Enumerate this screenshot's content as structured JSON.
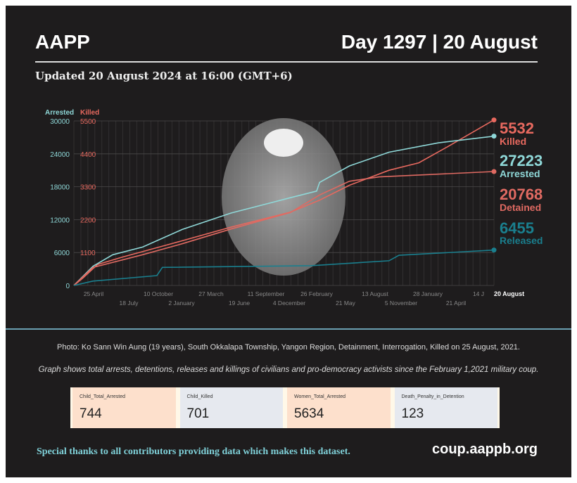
{
  "header": {
    "org": "AAPP",
    "day": "Day 1297 | 20 August",
    "updated": "Updated 20 August 2024 at 16:00 (GMT+6)"
  },
  "colors": {
    "arrested": "#8fd8d8",
    "killed": "#e8695f",
    "detained": "#e06a62",
    "released": "#1a7f8e",
    "background": "#1e1c1d"
  },
  "chart_data": {
    "type": "line",
    "left_axis": {
      "label": "Arrested",
      "ticks": [
        0,
        6000,
        12000,
        18000,
        24000,
        30000
      ],
      "ylim": [
        0,
        30000
      ]
    },
    "right_axis": {
      "label": "Killed",
      "ticks": [
        1100,
        2200,
        3300,
        4400,
        5500
      ],
      "ylim": [
        0,
        5500
      ]
    },
    "x_ticks": [
      "25 April",
      "18 July",
      "10 October",
      "2 January",
      "27 March",
      "19 June",
      "11 September",
      "4 December",
      "26 February",
      "21 May",
      "13 August",
      "5 November",
      "28 January",
      "21 April",
      "14 J"
    ],
    "x_end_label": "20 August",
    "xlim": [
      "2021-02-01",
      "2024-08-20"
    ],
    "grid": true,
    "series": [
      {
        "name": "Killed",
        "axis": "right",
        "color": "#e8695f",
        "final": "5532",
        "points": [
          [
            "2021-02-01",
            0
          ],
          [
            "2021-03-01",
            250
          ],
          [
            "2021-04-15",
            700
          ],
          [
            "2021-07-01",
            950
          ],
          [
            "2021-12-01",
            1400
          ],
          [
            "2022-06-01",
            1950
          ],
          [
            "2022-12-01",
            2450
          ],
          [
            "2023-03-01",
            2850
          ],
          [
            "2023-06-01",
            3350
          ],
          [
            "2023-10-01",
            3850
          ],
          [
            "2024-01-01",
            4100
          ],
          [
            "2024-04-01",
            4650
          ],
          [
            "2024-08-20",
            5532
          ]
        ]
      },
      {
        "name": "Arrested",
        "axis": "left",
        "color": "#8fd8d8",
        "final": "27223",
        "points": [
          [
            "2021-02-01",
            0
          ],
          [
            "2021-04-01",
            3500
          ],
          [
            "2021-06-01",
            5600
          ],
          [
            "2021-09-01",
            7000
          ],
          [
            "2022-01-01",
            10200
          ],
          [
            "2022-06-01",
            13200
          ],
          [
            "2022-12-01",
            16000
          ],
          [
            "2023-02-20",
            17200
          ],
          [
            "2023-03-01",
            18800
          ],
          [
            "2023-06-01",
            21800
          ],
          [
            "2023-10-01",
            24300
          ],
          [
            "2024-03-01",
            26000
          ],
          [
            "2024-08-20",
            27223
          ]
        ]
      },
      {
        "name": "Detained",
        "axis": "left",
        "color": "#e06a62",
        "final": "20768",
        "points": [
          [
            "2021-02-01",
            0
          ],
          [
            "2021-04-01",
            3300
          ],
          [
            "2021-09-01",
            5600
          ],
          [
            "2022-01-01",
            7600
          ],
          [
            "2022-06-01",
            10300
          ],
          [
            "2022-12-01",
            13300
          ],
          [
            "2023-03-01",
            16500
          ],
          [
            "2023-06-01",
            19000
          ],
          [
            "2023-09-01",
            19800
          ],
          [
            "2024-08-20",
            20768
          ]
        ]
      },
      {
        "name": "Released",
        "axis": "left",
        "color": "#1a7f8e",
        "final": "6455",
        "points": [
          [
            "2021-02-01",
            0
          ],
          [
            "2021-04-01",
            800
          ],
          [
            "2021-10-15",
            1800
          ],
          [
            "2021-11-01",
            3300
          ],
          [
            "2023-02-01",
            3600
          ],
          [
            "2023-10-01",
            4500
          ],
          [
            "2023-11-01",
            5500
          ],
          [
            "2024-08-20",
            6455
          ]
        ]
      }
    ]
  },
  "captions": {
    "photo": "Photo: Ko Sann Win Aung (19 years), South Okkalapa Township, Yangon Region, Detainment, Interrogation, Killed on 25 August, 2021.",
    "description": "Graph shows total arrests, detentions, releases and killings of civilians and pro-democracy activists since the February 1,2021 military coup."
  },
  "stats": [
    {
      "label": "Child_Total_Arrested",
      "value": "744",
      "color": "#fde0cc"
    },
    {
      "label": "Child_Killed",
      "value": "701",
      "color": "#e6e9ef"
    },
    {
      "label": "Women_Total_Arrested",
      "value": "5634",
      "color": "#fde0cc"
    },
    {
      "label": "Death_Penalty_in_Detention",
      "value": "123",
      "color": "#e6e9ef"
    }
  ],
  "footer": {
    "thanks": "Special thanks to all contributors providing data which makes this dataset.",
    "site": "coup.aappb.org"
  }
}
